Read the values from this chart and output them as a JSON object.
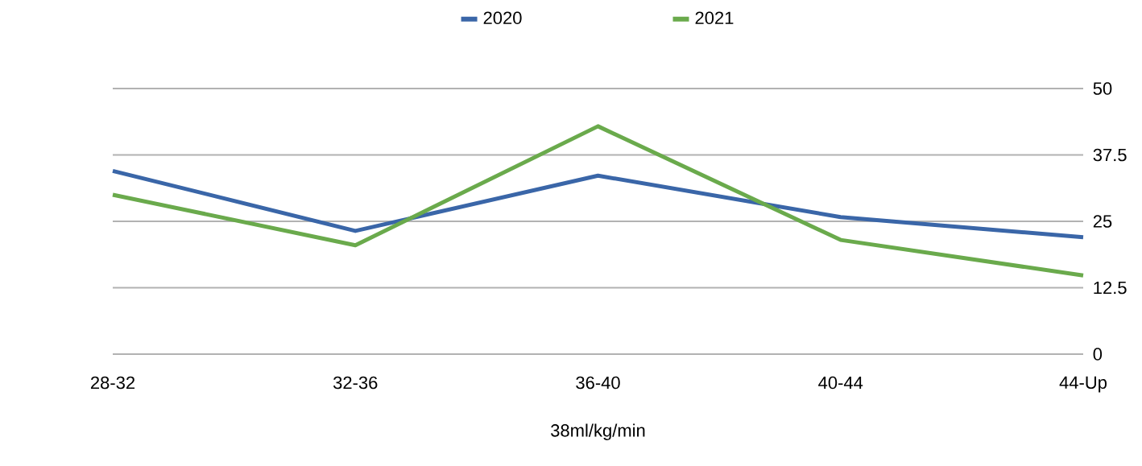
{
  "chart_data": {
    "type": "line",
    "xlabel": "38ml/kg/min",
    "categories": [
      "28-32",
      "32-36",
      "36-40",
      "40-44",
      "44-Up"
    ],
    "series": [
      {
        "name": "2020",
        "color": "#3a66a8",
        "values": [
          34.5,
          23.2,
          33.6,
          25.8,
          22.0
        ]
      },
      {
        "name": "2021",
        "color": "#6aaa4c",
        "values": [
          30.0,
          20.5,
          42.9,
          21.5,
          14.8
        ]
      }
    ],
    "ylim": [
      0,
      50
    ],
    "yticks": [
      0,
      12.5,
      25,
      37.5,
      50
    ],
    "grid": "y",
    "legend": "top",
    "marker": "none"
  }
}
